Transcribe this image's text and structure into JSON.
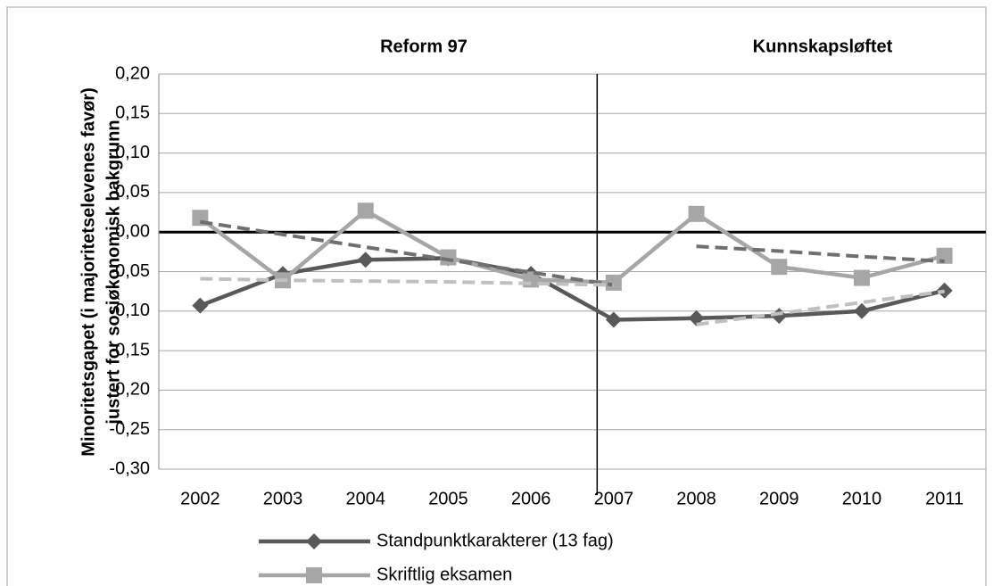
{
  "chart_data": {
    "type": "line",
    "annotations": [
      "Reform 97",
      "Kunnskapsløftet"
    ],
    "y_label": [
      "Minoritetsgapet (i majoritetselevenes favør)",
      "justert for sosiøkonomisk bakgrunn"
    ],
    "categories": [
      "2002",
      "2003",
      "2004",
      "2005",
      "2006",
      "2007",
      "2008",
      "2009",
      "2010",
      "2011"
    ],
    "series": [
      {
        "name": "Standpunktkarakterer (13 fag)",
        "color": "#595959",
        "marker": "diamond",
        "values": [
          -0.093,
          -0.053,
          -0.035,
          -0.033,
          -0.053,
          -0.111,
          -0.109,
          -0.106,
          -0.1,
          -0.074
        ]
      },
      {
        "name": "Skriftlig eksamen",
        "color": "#a6a6a6",
        "marker": "square",
        "values": [
          0.018,
          -0.061,
          0.027,
          -0.032,
          -0.06,
          -0.064,
          0.023,
          -0.044,
          -0.058,
          -0.03
        ]
      }
    ],
    "trendlines": [
      {
        "color": "#6f6f6f",
        "values": [
          0.013,
          -0.003,
          -0.019,
          -0.035,
          -0.051,
          -0.067,
          null,
          null,
          null,
          null
        ]
      },
      {
        "color": "#6f6f6f",
        "values": [
          null,
          null,
          null,
          null,
          null,
          null,
          -0.018,
          -0.024,
          -0.031,
          -0.037
        ]
      },
      {
        "color": "#c0c0c0",
        "values": [
          -0.059,
          -0.061,
          -0.062,
          -0.063,
          -0.065,
          -0.067,
          null,
          null,
          null,
          null
        ]
      },
      {
        "color": "#c0c0c0",
        "values": [
          null,
          null,
          null,
          null,
          null,
          null,
          -0.117,
          -0.103,
          -0.089,
          -0.075
        ]
      }
    ],
    "ylim": [
      -0.3,
      0.2
    ],
    "yticks": [
      {
        "value": -0.3,
        "label": "-0,30"
      },
      {
        "value": -0.25,
        "label": "-0,25"
      },
      {
        "value": -0.2,
        "label": "-0,20"
      },
      {
        "value": -0.15,
        "label": "-0,15"
      },
      {
        "value": -0.1,
        "label": "-0,10"
      },
      {
        "value": -0.05,
        "label": "-0,05"
      },
      {
        "value": 0,
        "label": "0,00"
      },
      {
        "value": 0.05,
        "label": "0,05"
      },
      {
        "value": 0.1,
        "label": "0,10"
      },
      {
        "value": 0.15,
        "label": "0,15"
      },
      {
        "value": 0.2,
        "label": "0,20"
      }
    ],
    "grid": true
  }
}
